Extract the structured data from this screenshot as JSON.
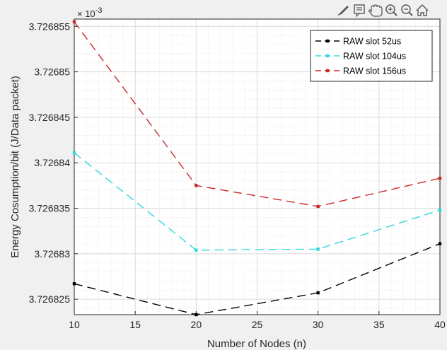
{
  "toolbar": {
    "icons": [
      "brush-icon",
      "data-tips-icon",
      "pan-hand-icon",
      "zoom-in-icon",
      "zoom-out-icon",
      "home-icon"
    ]
  },
  "chart_data": {
    "type": "line",
    "title": "",
    "xlabel": "Number of Nodes (n)",
    "ylabel": "Energy Cosumption/bit  (J/Data packet)",
    "x": [
      10,
      20,
      30,
      40
    ],
    "xlim": [
      10,
      40
    ],
    "xticks": [
      10,
      15,
      20,
      25,
      30,
      35,
      40
    ],
    "xtick_labels": [
      "10",
      "15",
      "20",
      "25",
      "30",
      "35",
      "40"
    ],
    "ylim": [
      3.7268233,
      3.7268558
    ],
    "yticks": [
      3.726825,
      3.72683,
      3.726835,
      3.72684,
      3.726845,
      3.72685,
      3.726855
    ],
    "ytick_labels": [
      "3.726825",
      "3.72683",
      "3.726835",
      "3.72684",
      "3.726845",
      "3.72685",
      "3.726855"
    ],
    "y_exponent_label": "× 10",
    "y_exponent_power": "-3",
    "grid": true,
    "minor_grid": true,
    "legend_position": "top-right",
    "series": [
      {
        "name": "RAW slot 52us",
        "color": "#000000",
        "values": [
          3.7268267,
          3.7268233,
          3.7268257,
          3.7268311
        ]
      },
      {
        "name": "RAW slot 104us",
        "color": "#33d6e0",
        "values": [
          3.7268411,
          3.7268304,
          3.7268305,
          3.7268348
        ]
      },
      {
        "name": "RAW slot 156us",
        "color": "#c8282a",
        "values": [
          3.7268555,
          3.7268375,
          3.7268352,
          3.7268383
        ]
      }
    ]
  }
}
